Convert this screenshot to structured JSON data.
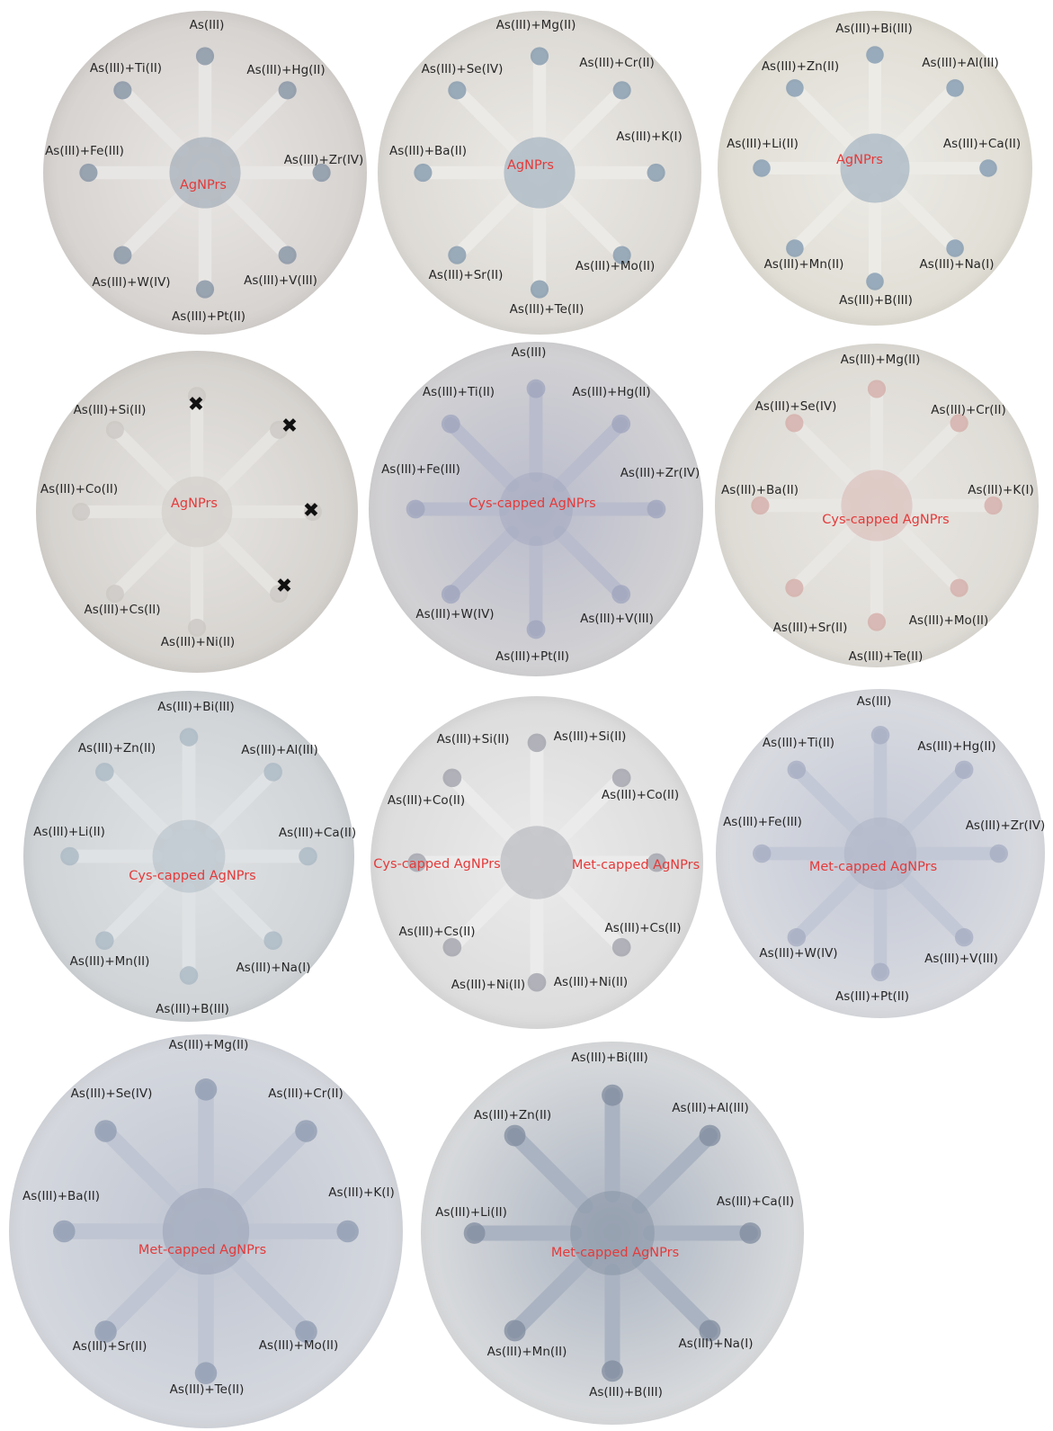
{
  "plates": [
    {
      "center_label": "AgNPrs",
      "paper_color": "#d6d2cf",
      "arm_color": "#e8e6e4",
      "spot_color": "#7f8ea0",
      "labels": [
        "As(III)",
        "As(III)+Hg(II)",
        "As(III)+Zr(IV)",
        "As(III)+V(III)",
        "As(III)+Pt(II)",
        "As(III)+W(IV)",
        "As(III)+Fe(III)",
        "As(III)+Ti(II)"
      ]
    },
    {
      "center_label": "AgNPrs",
      "paper_color": "#dcd9d4",
      "arm_color": "#eceae6",
      "spot_color": "#7d94aa",
      "labels": [
        "As(III)+Mg(II)",
        "As(III)+Cr(II)",
        "As(III)+K(I)",
        "As(III)+Mo(II)",
        "As(III)+Te(II)",
        "As(III)+Sr(II)",
        "As(III)+Ba(II)",
        "As(III)+Se(IV)"
      ]
    },
    {
      "center_label": "AgNPrs",
      "paper_color": "#e0ddd4",
      "arm_color": "#ecebe6",
      "spot_color": "#7c95ad",
      "labels": [
        "As(III)+Bi(III)",
        "As(III)+Al(III)",
        "As(III)+Ca(II)",
        "As(III)+Na(I)",
        "As(III)+B(III)",
        "As(III)+Mn(II)",
        "As(III)+Li(II)",
        "As(III)+Zn(II)"
      ]
    },
    {
      "center_label": "AgNPrs",
      "paper_color": "#d5d2ce",
      "arm_color": "#e6e4e1",
      "spot_color": "#c9c5c2",
      "labels": [
        "As(III)+Si(II)",
        "As(III)+Co(II)",
        "As(III)+Cs(II)",
        "As(III)+Ni(II)"
      ],
      "marks": [
        "✖",
        "✖",
        "✖",
        "✖"
      ]
    },
    {
      "center_label": "Cys-capped AgNPrs",
      "paper_color": "#d3d2d4",
      "arm_color": "#b9bccc",
      "spot_color": "#9fa4bd",
      "labels": [
        "As(III)",
        "As(III)+Hg(II)",
        "As(III)+Zr(IV)",
        "As(III)+V(III)",
        "As(III)+Pt(II)",
        "As(III)+W(IV)",
        "As(III)+Fe(III)",
        "As(III)+Ti(II)"
      ]
    },
    {
      "center_label": "Cys-capped AgNPrs",
      "paper_color": "#dedbd5",
      "arm_color": "#e9e7e3",
      "spot_color": "#d3aaa6",
      "labels": [
        "As(III)+Mg(II)",
        "As(III)+Cr(II)",
        "As(III)+K(I)",
        "As(III)+Mo(II)",
        "As(III)+Te(II)",
        "As(III)+Sr(II)",
        "As(III)+Ba(II)",
        "As(III)+Se(IV)"
      ]
    },
    {
      "center_label": "Cys-capped AgNPrs",
      "paper_color": "#cfd3d6",
      "arm_color": "#dfe2e4",
      "spot_color": "#a7b6c2",
      "labels": [
        "As(III)+Bi(III)",
        "As(III)+Al(III)",
        "As(III)+Ca(II)",
        "As(III)+Na(I)",
        "As(III)+B(III)",
        "As(III)+Mn(II)",
        "As(III)+Li(II)",
        "As(III)+Zn(II)"
      ]
    },
    {
      "center_label_left": "Cys-capped AgNPrs",
      "center_label_right": "Met-capped AgNPrs",
      "paper_color": "#dcdcdc",
      "arm_color": "#ebebeb",
      "spot_color": "#9e9fa8",
      "labels": [
        "As(III)+Si(II)",
        "As(III)+Si(II)",
        "As(III)+Co(II)",
        "As(III)+Co(II)",
        "As(III)+Cs(II)",
        "As(III)+Cs(II)",
        "As(III)+Ni(II)",
        "As(III)+Ni(II)"
      ]
    },
    {
      "center_label": "Met-capped AgNPrs",
      "paper_color": "#d9dbe0",
      "arm_color": "#c3c8d6",
      "spot_color": "#a6acc2",
      "labels": [
        "As(III)",
        "As(III)+Hg(II)",
        "As(III)+Zr(IV)",
        "As(III)+V(III)",
        "As(III)+Pt(II)",
        "As(III)+W(IV)",
        "As(III)+Fe(III)",
        "As(III)+Ti(II)"
      ]
    },
    {
      "center_label": "Met-capped AgNPrs",
      "paper_color": "#d5d8de",
      "arm_color": "#bfc5d2",
      "spot_color": "#8e99b0",
      "labels": [
        "As(III)+Mg(II)",
        "As(III)+Cr(II)",
        "As(III)+K(I)",
        "As(III)+Mo(II)",
        "As(III)+Te(II)",
        "As(III)+Sr(II)",
        "As(III)+Ba(II)",
        "As(III)+Se(IV)"
      ]
    },
    {
      "center_label": "Met-capped AgNPrs",
      "paper_color": "#d9dbdd",
      "arm_color": "#aab3c1",
      "spot_color": "#7f8b9e",
      "labels": [
        "As(III)+Bi(III)",
        "As(III)+Al(III)",
        "As(III)+Ca(II)",
        "As(III)+Na(I)",
        "As(III)+B(III)",
        "As(III)+Mn(II)",
        "As(III)+Li(II)",
        "As(III)+Zn(II)"
      ]
    }
  ]
}
